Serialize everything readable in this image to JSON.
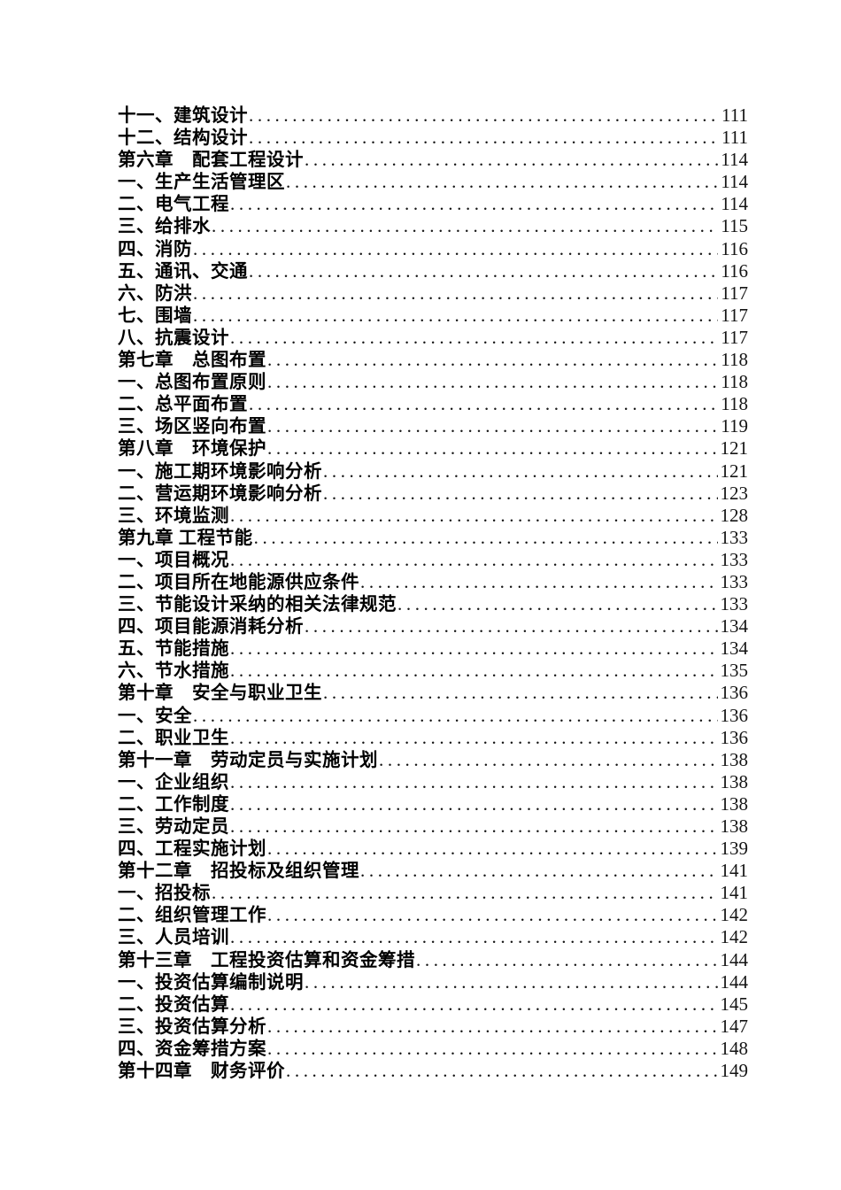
{
  "colors": {
    "background": "#ffffff",
    "text": "#000000",
    "page_number_text": "#141414"
  },
  "toc": {
    "entries": [
      {
        "label": "十一、建筑设计",
        "page": "111",
        "level": "item"
      },
      {
        "label": "十二、结构设计",
        "page": "111",
        "level": "item"
      },
      {
        "label": "第六章　配套工程设计",
        "page": "114",
        "level": "chapter"
      },
      {
        "label": "一、生产生活管理区",
        "page": "114",
        "level": "item"
      },
      {
        "label": "二、电气工程",
        "page": "114",
        "level": "item"
      },
      {
        "label": "三、给排水",
        "page": "115",
        "level": "item"
      },
      {
        "label": "四、消防",
        "page": "116",
        "level": "item"
      },
      {
        "label": "五、通讯、交通",
        "page": "116",
        "level": "item"
      },
      {
        "label": "六、防洪",
        "page": "117",
        "level": "item"
      },
      {
        "label": "七、围墙",
        "page": "117",
        "level": "item"
      },
      {
        "label": "八、抗震设计",
        "page": "117",
        "level": "item"
      },
      {
        "label": "第七章　总图布置",
        "page": "118",
        "level": "chapter"
      },
      {
        "label": "一、总图布置原则",
        "page": "118",
        "level": "item"
      },
      {
        "label": "二、总平面布置",
        "page": "118",
        "level": "item"
      },
      {
        "label": "三、场区竖向布置",
        "page": "119",
        "level": "item"
      },
      {
        "label": "第八章　环境保护",
        "page": "121",
        "level": "chapter"
      },
      {
        "label": "一、施工期环境影响分析",
        "page": "121",
        "level": "item"
      },
      {
        "label": "二、营运期环境影响分析",
        "page": "123",
        "level": "item"
      },
      {
        "label": "三、环境监测",
        "page": "128",
        "level": "item"
      },
      {
        "label": "第九章 工程节能",
        "page": "133",
        "level": "chapter"
      },
      {
        "label": "一、项目概况",
        "page": "133",
        "level": "item"
      },
      {
        "label": "二、项目所在地能源供应条件",
        "page": "133",
        "level": "item"
      },
      {
        "label": "三、节能设计采纳的相关法律规范",
        "page": "133",
        "level": "item"
      },
      {
        "label": "四、项目能源消耗分析",
        "page": "134",
        "level": "item"
      },
      {
        "label": "五、节能措施",
        "page": "134",
        "level": "item"
      },
      {
        "label": "六、节水措施",
        "page": "135",
        "level": "item"
      },
      {
        "label": "第十章　安全与职业卫生",
        "page": "136",
        "level": "chapter"
      },
      {
        "label": "一、安全",
        "page": "136",
        "level": "item"
      },
      {
        "label": "二、职业卫生",
        "page": "136",
        "level": "item"
      },
      {
        "label": "第十一章　劳动定员与实施计划",
        "page": "138",
        "level": "chapter"
      },
      {
        "label": "一、企业组织",
        "page": "138",
        "level": "item"
      },
      {
        "label": "二、工作制度",
        "page": "138",
        "level": "item"
      },
      {
        "label": "三、劳动定员",
        "page": "138",
        "level": "item"
      },
      {
        "label": "四、工程实施计划",
        "page": "139",
        "level": "item"
      },
      {
        "label": "第十二章　招投标及组织管理",
        "page": "141",
        "level": "chapter"
      },
      {
        "label": "一、招投标",
        "page": "141",
        "level": "item"
      },
      {
        "label": "二、组织管理工作",
        "page": "142",
        "level": "item"
      },
      {
        "label": "三、人员培训",
        "page": "142",
        "level": "item"
      },
      {
        "label": "第十三章　工程投资估算和资金筹措",
        "page": "144",
        "level": "chapter"
      },
      {
        "label": "一、投资估算编制说明",
        "page": "144",
        "level": "item"
      },
      {
        "label": "二、投资估算",
        "page": "145",
        "level": "item"
      },
      {
        "label": "三、投资估算分析",
        "page": "147",
        "level": "item"
      },
      {
        "label": "四、资金筹措方案",
        "page": "148",
        "level": "item"
      },
      {
        "label": "第十四章　财务评价",
        "page": "149",
        "level": "chapter"
      }
    ]
  }
}
